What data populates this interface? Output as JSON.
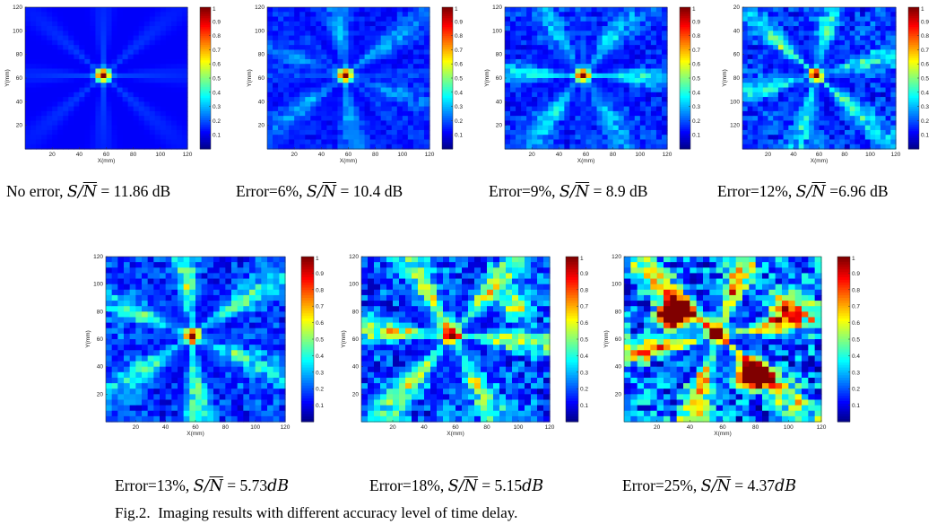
{
  "figure": {
    "label": "Fig.2.",
    "text": "Imaging results with different accuracy level of time delay."
  },
  "colorbar": {
    "ticks": [
      "0.1",
      "0.2",
      "0.3",
      "0.4",
      "0.5",
      "0.6",
      "0.7",
      "0.8",
      "0.9"
    ],
    "top_label": "1",
    "colormap": "jet"
  },
  "axes": {
    "xlabel": "X(mm)",
    "ylabel": "Y(mm)"
  },
  "panels": [
    {
      "id": "p1",
      "error": "No error",
      "snr": "11.86 dB",
      "caption_prefix": "No error, ",
      "caption_value": " = 11.86 dB",
      "x_ticks": [
        "20",
        "40",
        "60",
        "80",
        "100",
        "120"
      ],
      "y_ticks": [
        "120",
        "100",
        "80",
        "60",
        "40",
        "20"
      ],
      "y_inverted": false,
      "noise_level": 0.0
    },
    {
      "id": "p2",
      "error": "6%",
      "snr": "10.4 dB",
      "caption_prefix": "Error=6%, ",
      "caption_value": " = 10.4 dB",
      "x_ticks": [
        "20",
        "40",
        "60",
        "80",
        "100",
        "120"
      ],
      "y_ticks": [
        "120",
        "100",
        "80",
        "60",
        "40",
        "20"
      ],
      "y_inverted": false,
      "noise_level": 0.06
    },
    {
      "id": "p3",
      "error": "9%",
      "snr": "8.9 dB",
      "caption_prefix": "Error=9%, ",
      "caption_value": " = 8.9 dB",
      "x_ticks": [
        "20",
        "40",
        "60",
        "80",
        "100",
        "120"
      ],
      "y_ticks": [
        "120",
        "100",
        "80",
        "60",
        "40",
        "20"
      ],
      "y_inverted": false,
      "noise_level": 0.09
    },
    {
      "id": "p4",
      "error": "12%",
      "snr": "6.96 dB",
      "caption_prefix": "Error=12%, ",
      "caption_value": " =6.96 dB",
      "x_ticks": [
        "20",
        "40",
        "60",
        "80",
        "100",
        "120"
      ],
      "y_ticks": [
        "20",
        "40",
        "60",
        "80",
        "100",
        "120"
      ],
      "y_inverted": true,
      "noise_level": 0.12
    },
    {
      "id": "p5",
      "error": "13%",
      "snr": "5.73dB",
      "caption_prefix": "Error=13%, ",
      "caption_value": " = 5.73",
      "caption_unit": "dB",
      "x_ticks": [
        "20",
        "40",
        "60",
        "80",
        "100",
        "120"
      ],
      "y_ticks": [
        "120",
        "100",
        "80",
        "60",
        "40",
        "20"
      ],
      "y_inverted": false,
      "noise_level": 0.13
    },
    {
      "id": "p6",
      "error": "18%",
      "snr": "5.15dB",
      "caption_prefix": "Error=18%, ",
      "caption_value": " = 5.15",
      "caption_unit": "dB",
      "x_ticks": [
        "20",
        "40",
        "60",
        "80",
        "100",
        "120"
      ],
      "y_ticks": [
        "120",
        "100",
        "80",
        "60",
        "40",
        "20"
      ],
      "y_inverted": false,
      "noise_level": 0.18
    },
    {
      "id": "p7",
      "error": "25%",
      "snr": "4.37dB",
      "caption_prefix": "Error=25%, ",
      "caption_value": " = 4.37",
      "caption_unit": "dB",
      "x_ticks": [
        "20",
        "40",
        "60",
        "80",
        "100",
        "120"
      ],
      "y_ticks": [
        "120",
        "100",
        "80",
        "60",
        "40",
        "20"
      ],
      "y_inverted": false,
      "noise_level": 0.25
    }
  ],
  "symbols": {
    "S": "S",
    "slash": "/",
    "N": "N"
  }
}
